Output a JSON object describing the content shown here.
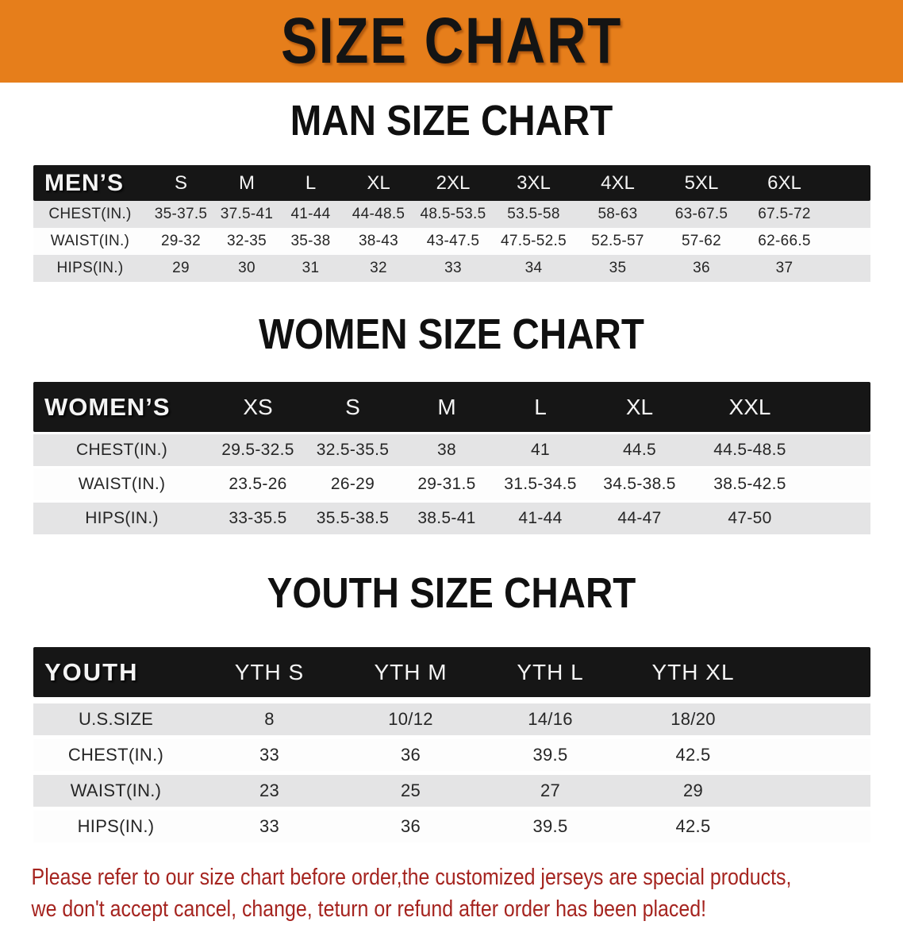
{
  "banner": {
    "title": "SIZE CHART"
  },
  "colors": {
    "banner_bg": "#e67e1b",
    "header_band": "#161616",
    "row_alt_gray": "#e4e4e5",
    "row_white": "#fdfdfd",
    "note_red": "#a5241f"
  },
  "men": {
    "heading": "MAN SIZE CHART",
    "columns": [
      "MEN’S",
      "S",
      "M",
      "L",
      "XL",
      "2XL",
      "3XL",
      "4XL",
      "5XL",
      "6XL"
    ],
    "rows": [
      {
        "label": "CHEST(IN.)",
        "values": [
          "35-37.5",
          "37.5-41",
          "41-44",
          "44-48.5",
          "48.5-53.5",
          "53.5-58",
          "58-63",
          "63-67.5",
          "67.5-72"
        ]
      },
      {
        "label": "WAIST(IN.)",
        "values": [
          "29-32",
          "32-35",
          "35-38",
          "38-43",
          "43-47.5",
          "47.5-52.5",
          "52.5-57",
          "57-62",
          "62-66.5"
        ]
      },
      {
        "label": "HIPS(IN.)",
        "values": [
          "29",
          "30",
          "31",
          "32",
          "33",
          "34",
          "35",
          "36",
          "37"
        ]
      }
    ]
  },
  "women": {
    "heading": "WOMEN SIZE CHART",
    "columns": [
      "WOMEN’S",
      "XS",
      "S",
      "M",
      "L",
      "XL",
      "XXL"
    ],
    "rows": [
      {
        "label": "CHEST(IN.)",
        "values": [
          "29.5-32.5",
          "32.5-35.5",
          "38",
          "41",
          "44.5",
          "44.5-48.5"
        ]
      },
      {
        "label": "WAIST(IN.)",
        "values": [
          "23.5-26",
          "26-29",
          "29-31.5",
          "31.5-34.5",
          "34.5-38.5",
          "38.5-42.5"
        ]
      },
      {
        "label": "HIPS(IN.)",
        "values": [
          "33-35.5",
          "35.5-38.5",
          "38.5-41",
          "41-44",
          "44-47",
          "47-50"
        ]
      }
    ]
  },
  "youth": {
    "heading": "YOUTH SIZE CHART",
    "columns": [
      "YOUTH",
      "YTH S",
      "YTH M",
      "YTH L",
      "YTH XL"
    ],
    "rows": [
      {
        "label": "U.S.SIZE",
        "values": [
          "8",
          "10/12",
          "14/16",
          "18/20"
        ]
      },
      {
        "label": "CHEST(IN.)",
        "values": [
          "33",
          "36",
          "39.5",
          "42.5"
        ]
      },
      {
        "label": "WAIST(IN.)",
        "values": [
          "23",
          "25",
          "27",
          "29"
        ]
      },
      {
        "label": "HIPS(IN.)",
        "values": [
          "33",
          "36",
          "39.5",
          "42.5"
        ]
      }
    ]
  },
  "note": {
    "line1": "Please refer to our size chart before order,the customized jerseys are special products,",
    "line2": "we don't accept cancel, change, teturn or refund after order has been placed!"
  }
}
